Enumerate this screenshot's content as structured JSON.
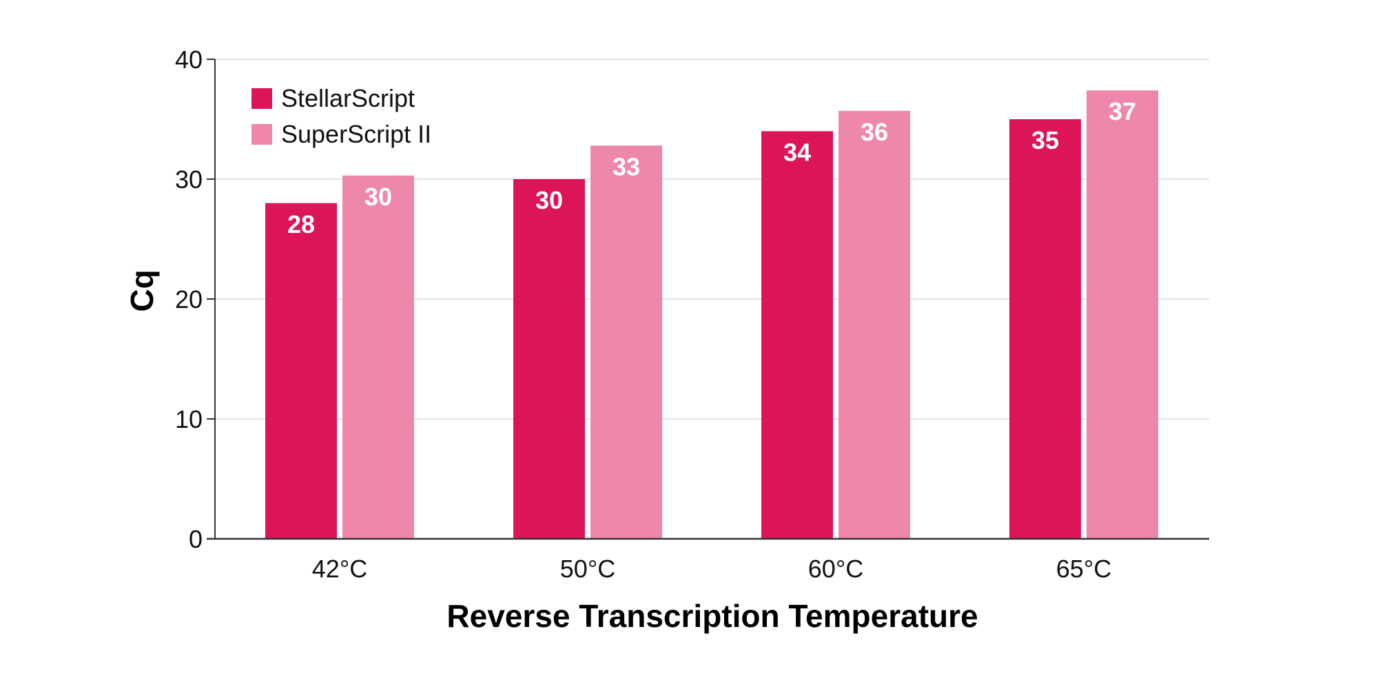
{
  "chart_data": {
    "type": "bar",
    "title": "",
    "xlabel": "Reverse Transcription Temperature",
    "ylabel": "Cq",
    "categories": [
      "42°C",
      "50°C",
      "60°C",
      "65°C"
    ],
    "series": [
      {
        "name": "StellarScript",
        "color": "#dc145a",
        "values": [
          28,
          30,
          34,
          35
        ],
        "display_labels": [
          "28",
          "30",
          "34",
          "35"
        ]
      },
      {
        "name": "SuperScript II",
        "color": "#ee88ab",
        "values": [
          30.3,
          32.8,
          35.7,
          37.4
        ],
        "display_labels": [
          "30",
          "33",
          "36",
          "37"
        ]
      }
    ],
    "ylim": [
      0,
      40
    ],
    "yticks": [
      0,
      10,
      20,
      30,
      40
    ],
    "grid": true,
    "legend_position": "top-left"
  }
}
